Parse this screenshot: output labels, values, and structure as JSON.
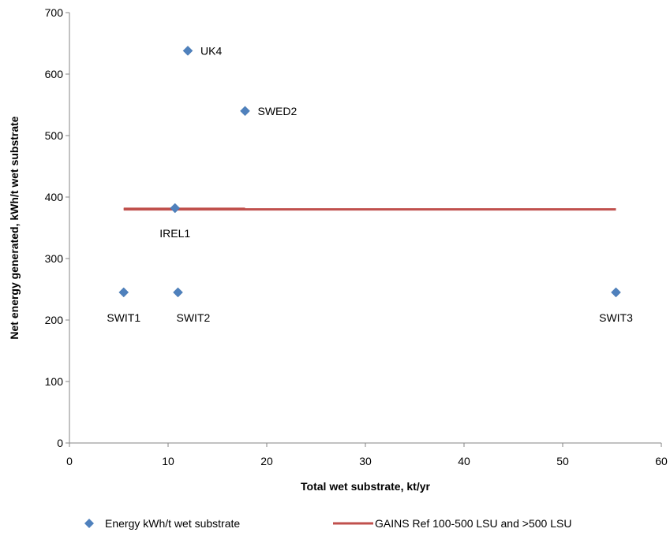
{
  "chart_data": {
    "type": "scatter",
    "title": "",
    "xlabel": "Total wet substrate, kt/yr",
    "ylabel": "Net energy generated, kWh/t wet substrate",
    "xlim": [
      0,
      60
    ],
    "ylim": [
      0,
      700
    ],
    "xticks": [
      0,
      10,
      20,
      30,
      40,
      50,
      60
    ],
    "yticks": [
      0,
      100,
      200,
      300,
      400,
      500,
      600,
      700
    ],
    "grid": false,
    "legend_position": "bottom",
    "series": [
      {
        "name": "Energy kWh/t wet substrate",
        "kind": "scatter",
        "marker": "diamond",
        "color": "#4f81bd",
        "points": [
          {
            "label": "UK4",
            "x": 12.0,
            "y": 638,
            "label_side": "right"
          },
          {
            "label": "SWED2",
            "x": 17.8,
            "y": 540,
            "label_side": "right"
          },
          {
            "label": "IREL1",
            "x": 10.7,
            "y": 382,
            "label_side": "below"
          },
          {
            "label": "SWIT1",
            "x": 5.5,
            "y": 245,
            "label_side": "below"
          },
          {
            "label": "SWIT2",
            "x": 11.0,
            "y": 245,
            "label_side": "below-right"
          },
          {
            "label": "SWIT3",
            "x": 55.4,
            "y": 245,
            "label_side": "below"
          }
        ]
      },
      {
        "name": "GAINS Ref 100-500 LSU and >500 LSU",
        "kind": "line",
        "color": "#c0504d",
        "segments": [
          {
            "x": [
              5.5,
              17.8
            ],
            "y": [
              381,
              381
            ]
          },
          {
            "x": [
              5.5,
              55.4
            ],
            "y": [
              380,
              380
            ]
          }
        ]
      }
    ]
  }
}
